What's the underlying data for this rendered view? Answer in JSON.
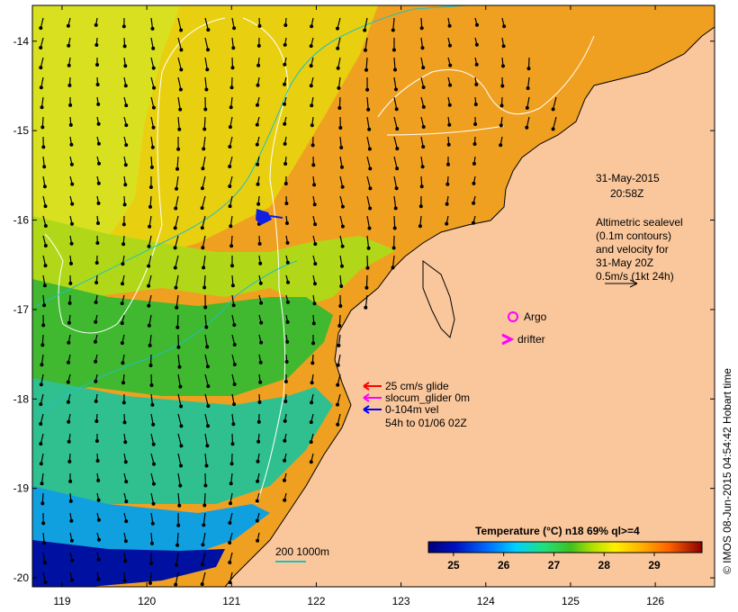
{
  "map": {
    "lon_range": [
      118.65,
      126.7
    ],
    "lat_range": [
      -20.1,
      -13.6
    ],
    "lon_ticks": [
      "119",
      "120",
      "121",
      "122",
      "123",
      "124",
      "125",
      "126"
    ],
    "lat_ticks": [
      "-14",
      "-15",
      "-16",
      "-17",
      "-18",
      "-19",
      "-20"
    ],
    "land_color": "#fac79c",
    "coast_color": "#000000"
  },
  "datetime": {
    "line1": "31-May-2015",
    "line2": "20:58Z"
  },
  "altimetry_note": {
    "lines": [
      "Altimetric sealevel",
      "(0.1m contours)",
      "and velocity for",
      "31-May 20Z",
      "0.5m/s (1kt 24h)"
    ]
  },
  "legend": {
    "argo": {
      "label": "Argo",
      "color": "#ff00ff"
    },
    "drifter": {
      "label": "drifter",
      "color": "#ff00ff"
    },
    "glide": {
      "label": "25 cm/s glide",
      "color": "#ff0000"
    },
    "slocum": {
      "label": "slocum_glider 0m",
      "color": "#ff00ff"
    },
    "vel": {
      "label": "0-104m vel",
      "color": "#0000ff"
    },
    "vel_time": {
      "label": "54h to 01/06 02Z"
    }
  },
  "depth_legend": {
    "label": "200  1000m",
    "color": "#20c0c0"
  },
  "colorbar": {
    "title": "Temperature (°C) n18 69% ql>=4",
    "ticks": [
      "25",
      "26",
      "27",
      "28",
      "29"
    ],
    "range": [
      24.5,
      29.95
    ]
  },
  "credit": "© IMOS 08-Jun-2015 04:54:42 Hobart time"
}
